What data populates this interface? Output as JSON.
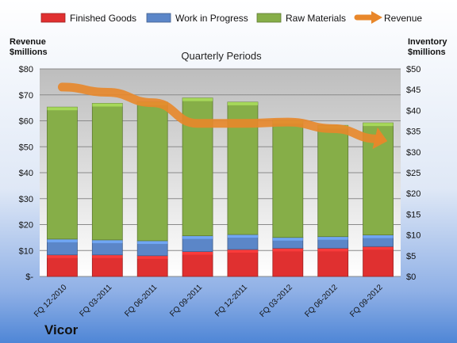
{
  "company": "Vicor",
  "chart_data": {
    "type": "bar",
    "subtitle": "Quarterly Periods",
    "left_axis_label": [
      "Revenue",
      "$millions"
    ],
    "right_axis_label": [
      "Inventory",
      "$millions"
    ],
    "left_axis_ticks": [
      "$-",
      "$10",
      "$20",
      "$30",
      "$40",
      "$50",
      "$60",
      "$70",
      "$80"
    ],
    "right_axis_ticks": [
      "$0",
      "$5",
      "$10",
      "$15",
      "$20",
      "$25",
      "$30",
      "$35",
      "$40",
      "$45",
      "$50"
    ],
    "left_ylim": [
      0,
      80
    ],
    "right_ylim": [
      0,
      50
    ],
    "grid": true,
    "legend_position": "top",
    "categories": [
      "FQ 12-2010",
      "FQ 03-2011",
      "FQ 06-2011",
      "FQ 09-2011",
      "FQ 12-2011",
      "FQ 03-2012",
      "FQ 06-2012",
      "FQ 09-2012"
    ],
    "stacked_series": [
      {
        "name": "Finished Goods",
        "color": "#e03030",
        "axis": "right",
        "values": [
          5.2,
          5.2,
          5.0,
          6.0,
          6.5,
          6.8,
          6.8,
          7.2
        ]
      },
      {
        "name": "Work in Progress",
        "color": "#5b86c8",
        "axis": "right",
        "values": [
          3.8,
          3.6,
          3.6,
          3.8,
          3.6,
          2.6,
          2.8,
          2.8
        ]
      },
      {
        "name": "Raw Materials",
        "color": "#86ae48",
        "axis": "right",
        "values": [
          31.8,
          32.9,
          33.4,
          33.2,
          31.9,
          28.2,
          26.8,
          27.0
        ]
      }
    ],
    "line_series": {
      "name": "Revenue",
      "color": "#e8872a",
      "axis": "left",
      "values": [
        73,
        71,
        67,
        59,
        59,
        59.5,
        57,
        53
      ]
    }
  }
}
